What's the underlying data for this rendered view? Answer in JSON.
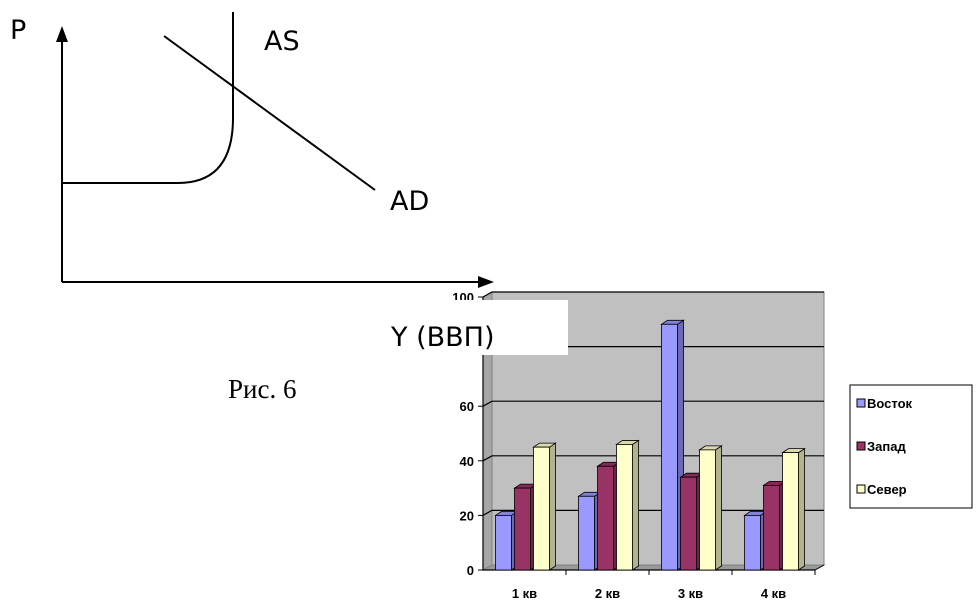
{
  "diagram": {
    "y_axis_label": "P",
    "x_axis_label": "Y (ВВП)",
    "curve_as_label": "AS",
    "curve_ad_label": "AD"
  },
  "caption": "Рис. 6",
  "chart_data": {
    "type": "bar",
    "categories": [
      "1 кв",
      "2 кв",
      "3 кв",
      "4 кв"
    ],
    "series": [
      {
        "name": "Восток",
        "values": [
          20,
          27,
          90,
          20
        ],
        "color": "#9999ff"
      },
      {
        "name": "Запад",
        "values": [
          30,
          38,
          34,
          31
        ],
        "color": "#993366"
      },
      {
        "name": "Север",
        "values": [
          45,
          46,
          44,
          43
        ],
        "color": "#ffffcc"
      }
    ],
    "yticks": [
      0,
      20,
      40,
      60,
      "",
      100
    ],
    "ylim": [
      0,
      100
    ],
    "grid": true,
    "legend": "right",
    "plot_background": "#c0c0c0"
  }
}
